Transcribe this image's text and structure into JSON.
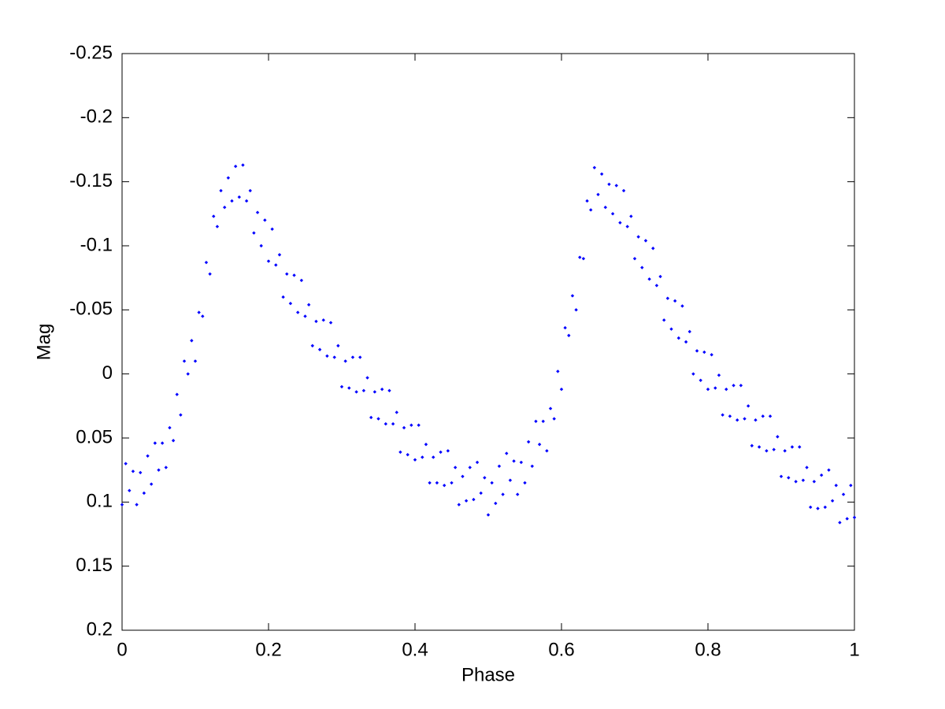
{
  "chart_data": {
    "type": "scatter",
    "x_label": "Phase",
    "y_label": "Mag",
    "xlim": [
      0,
      1
    ],
    "xticks": [
      0,
      0.2,
      0.4,
      0.6,
      0.8,
      1
    ],
    "ylim": [
      -0.25,
      0.2
    ],
    "yticks": [
      -0.25,
      -0.2,
      -0.15,
      -0.1,
      -0.05,
      0,
      0.05,
      0.1,
      0.15,
      0.2
    ],
    "y_reversed": true,
    "grid": false,
    "color": "#0000ff",
    "x": [
      0,
      0.005,
      0.01,
      0.015,
      0.02,
      0.025,
      0.03,
      0.035,
      0.04,
      0.045,
      0.05,
      0.055,
      0.06,
      0.065,
      0.07,
      0.075,
      0.08,
      0.085,
      0.09,
      0.095,
      0.1,
      0.105,
      0.11,
      0.115,
      0.12,
      0.125,
      0.13,
      0.135,
      0.14,
      0.145,
      0.15,
      0.155,
      0.16,
      0.165,
      0.17,
      0.175,
      0.18,
      0.185,
      0.19,
      0.195,
      0.2,
      0.205,
      0.21,
      0.215,
      0.22,
      0.225,
      0.23,
      0.235,
      0.24,
      0.245,
      0.25,
      0.255,
      0.26,
      0.265,
      0.27,
      0.275,
      0.28,
      0.285,
      0.29,
      0.295,
      0.3,
      0.305,
      0.31,
      0.315,
      0.32,
      0.325,
      0.33,
      0.335,
      0.34,
      0.345,
      0.35,
      0.355,
      0.36,
      0.365,
      0.37,
      0.375,
      0.38,
      0.385,
      0.39,
      0.395,
      0.4,
      0.405,
      0.41,
      0.415,
      0.42,
      0.425,
      0.43,
      0.435,
      0.44,
      0.445,
      0.45,
      0.455,
      0.46,
      0.465,
      0.47,
      0.475,
      0.48,
      0.485,
      0.49,
      0.495,
      0.5,
      0.505,
      0.51,
      0.515,
      0.52,
      0.525,
      0.53,
      0.535,
      0.54,
      0.545,
      0.55,
      0.555,
      0.56,
      0.565,
      0.57,
      0.575,
      0.58,
      0.585,
      0.59,
      0.595,
      0.6,
      0.605,
      0.61,
      0.615,
      0.62,
      0.625,
      0.63,
      0.635,
      0.64,
      0.645,
      0.65,
      0.655,
      0.66,
      0.665,
      0.67,
      0.675,
      0.68,
      0.685,
      0.69,
      0.695,
      0.7,
      0.705,
      0.71,
      0.715,
      0.72,
      0.725,
      0.73,
      0.735,
      0.74,
      0.745,
      0.75,
      0.755,
      0.76,
      0.765,
      0.77,
      0.775,
      0.78,
      0.785,
      0.79,
      0.795,
      0.8,
      0.805,
      0.81,
      0.815,
      0.82,
      0.825,
      0.83,
      0.835,
      0.84,
      0.845,
      0.85,
      0.855,
      0.86,
      0.865,
      0.87,
      0.875,
      0.88,
      0.885,
      0.89,
      0.895,
      0.9,
      0.905,
      0.91,
      0.915,
      0.92,
      0.925,
      0.93,
      0.935,
      0.94,
      0.945,
      0.95,
      0.955,
      0.96,
      0.965,
      0.97,
      0.975,
      0.98,
      0.985,
      0.99,
      0.995,
      1
    ],
    "values": [
      0.102,
      0.07,
      0.091,
      0.076,
      0.102,
      0.077,
      0.093,
      0.064,
      0.086,
      0.054,
      0.075,
      0.054,
      0.073,
      0.042,
      0.052,
      0.016,
      0.032,
      -0.01,
      0.0,
      -0.026,
      -0.01,
      -0.048,
      -0.045,
      -0.087,
      -0.078,
      -0.123,
      -0.115,
      -0.143,
      -0.13,
      -0.153,
      -0.135,
      -0.162,
      -0.138,
      -0.163,
      -0.135,
      -0.143,
      -0.11,
      -0.126,
      -0.1,
      -0.12,
      -0.088,
      -0.113,
      -0.085,
      -0.093,
      -0.06,
      -0.078,
      -0.055,
      -0.077,
      -0.048,
      -0.073,
      -0.045,
      -0.054,
      -0.022,
      -0.041,
      -0.019,
      -0.042,
      -0.014,
      -0.04,
      -0.013,
      -0.022,
      0.01,
      -0.01,
      0.011,
      -0.013,
      0.014,
      -0.013,
      0.013,
      0.003,
      0.034,
      0.014,
      0.035,
      0.012,
      0.039,
      0.013,
      0.039,
      0.03,
      0.061,
      0.042,
      0.063,
      0.04,
      0.067,
      0.04,
      0.065,
      0.055,
      0.085,
      0.065,
      0.085,
      0.061,
      0.087,
      0.06,
      0.085,
      0.073,
      0.102,
      0.08,
      0.099,
      0.073,
      0.098,
      0.069,
      0.093,
      0.081,
      0.11,
      0.085,
      0.101,
      0.072,
      0.094,
      0.062,
      0.083,
      0.068,
      0.094,
      0.069,
      0.085,
      0.053,
      0.072,
      0.037,
      0.055,
      0.037,
      0.06,
      0.027,
      0.035,
      -0.002,
      0.012,
      -0.036,
      -0.03,
      -0.061,
      -0.05,
      -0.091,
      -0.09,
      -0.135,
      -0.128,
      -0.161,
      -0.14,
      -0.156,
      -0.13,
      -0.148,
      -0.125,
      -0.147,
      -0.118,
      -0.143,
      -0.115,
      -0.123,
      -0.09,
      -0.107,
      -0.083,
      -0.104,
      -0.074,
      -0.098,
      -0.069,
      -0.076,
      -0.042,
      -0.059,
      -0.035,
      -0.057,
      -0.028,
      -0.053,
      -0.025,
      -0.033,
      0.0,
      -0.018,
      0.005,
      -0.017,
      0.012,
      -0.015,
      0.011,
      0.001,
      0.032,
      0.012,
      0.033,
      0.009,
      0.036,
      0.009,
      0.035,
      0.025,
      0.056,
      0.036,
      0.057,
      0.033,
      0.06,
      0.033,
      0.059,
      0.049,
      0.08,
      0.06,
      0.081,
      0.057,
      0.084,
      0.057,
      0.083,
      0.073,
      0.104,
      0.084,
      0.105,
      0.079,
      0.104,
      0.075,
      0.099,
      0.087,
      0.116,
      0.094,
      0.113,
      0.087,
      0.112
    ]
  }
}
